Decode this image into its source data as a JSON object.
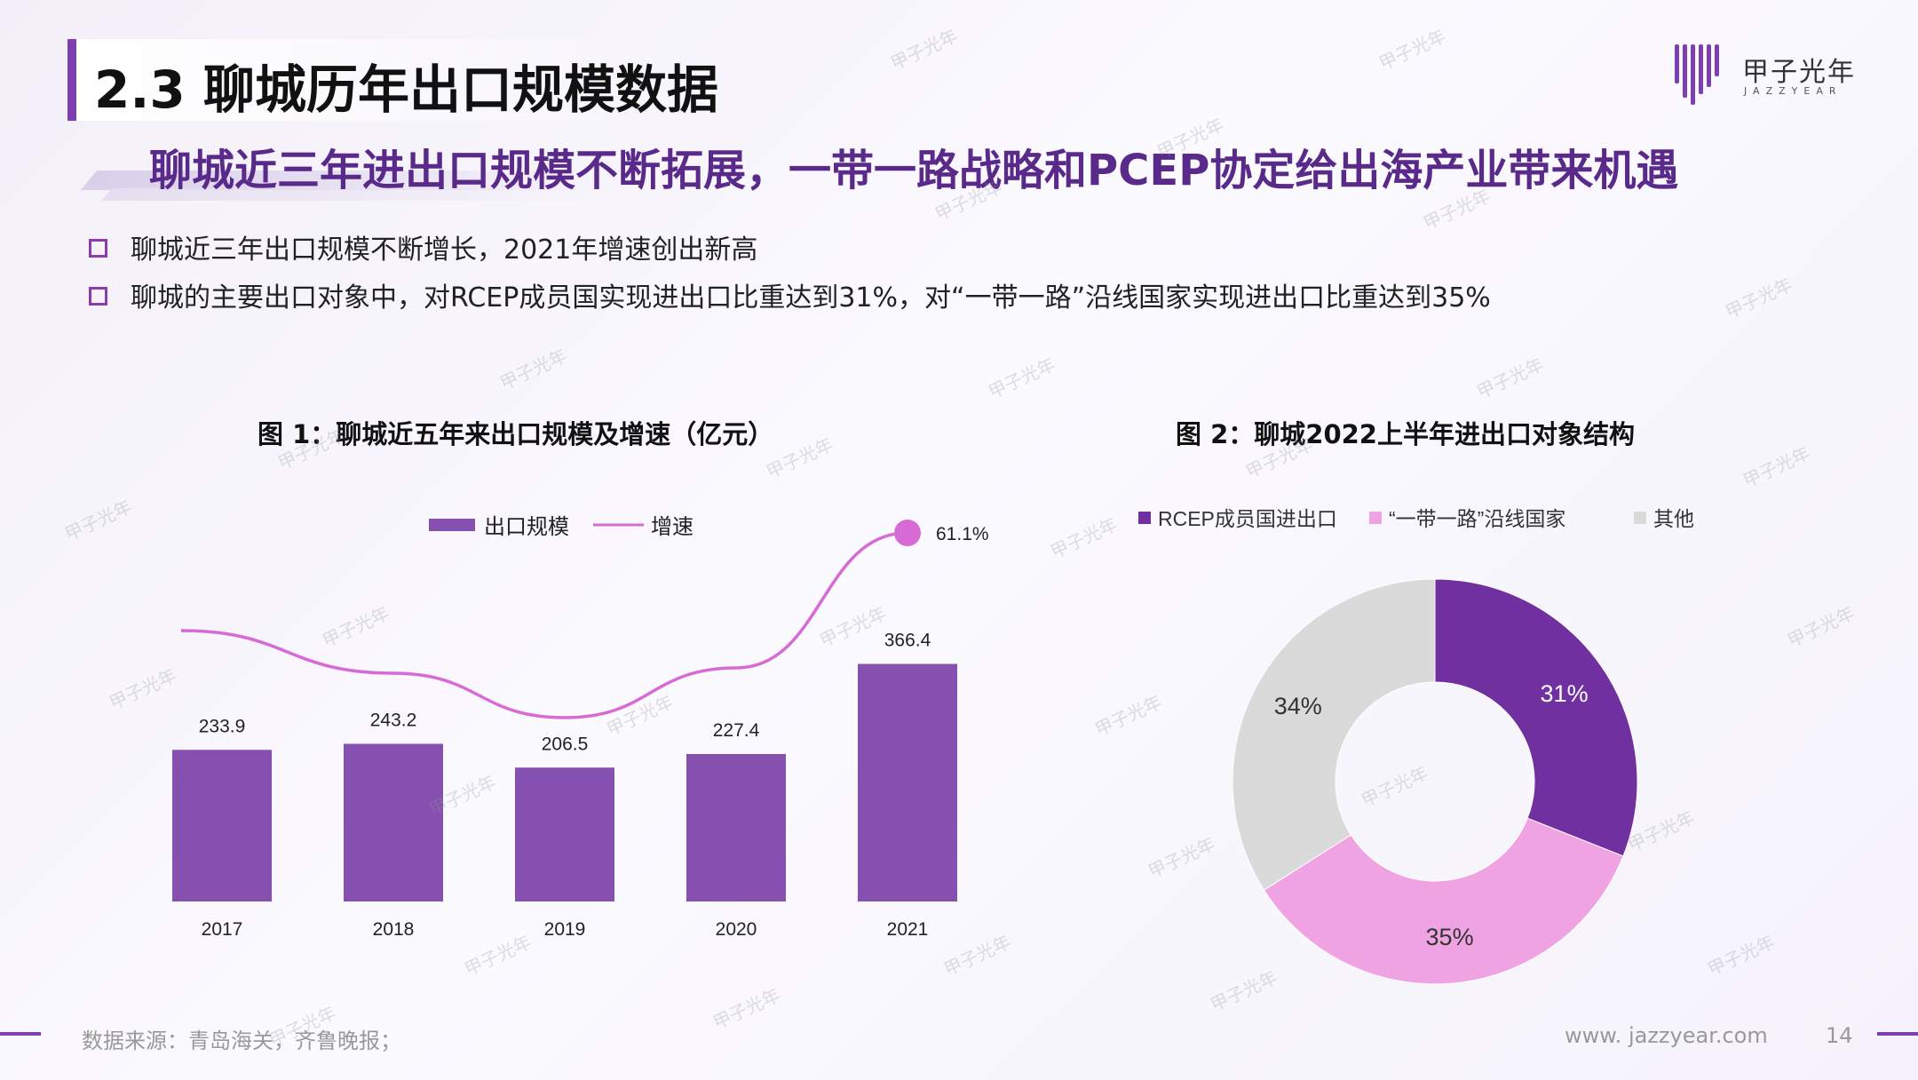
{
  "header": {
    "title": "2.3 聊城历年出口规模数据",
    "subtitle": "聊城近三年进出口规模不断拓展，一带一路战略和PCEP协定给出海产业带来机遇"
  },
  "logo": {
    "cn": "甲子光年",
    "en": "JAZZYEAR"
  },
  "bullets": [
    "聊城近三年出口规模不断增长，2021年增速创出新高",
    "聊城的主要出口对象中，对RCEP成员国实现进出口比重达到31%，对“一带一路”沿线国家实现进出口比重达到35%"
  ],
  "watermark": "甲子光年",
  "footer": {
    "source": "数据来源：青岛海关，齐鲁晚报；",
    "url": "www. jazzyear.com",
    "page": "14"
  },
  "colors": {
    "accent": "#7d3fb0",
    "bar": "#8650b0",
    "line": "#d86ad6",
    "rcep": "#7030a0",
    "belt": "#f0a3e2",
    "other": "#dadada"
  },
  "chart_data": [
    {
      "type": "bar",
      "title": "图 1：聊城近五年来出口规模及增速（亿元）",
      "categories": [
        "2017",
        "2018",
        "2019",
        "2020",
        "2021"
      ],
      "series": [
        {
          "name": "出口规模",
          "type": "bar",
          "values": [
            233.9,
            243.2,
            206.5,
            227.4,
            366.4
          ]
        },
        {
          "name": "增速",
          "type": "line",
          "values": [
            null,
            null,
            null,
            null,
            61.1
          ],
          "labels": [
            "",
            "",
            "",
            "",
            "61.1%"
          ]
        }
      ],
      "legend": "top"
    },
    {
      "type": "pie",
      "variant": "donut",
      "title": "图 2：聊城2022上半年进出口对象结构",
      "labels": [
        "RCEP成员国进出口",
        "“一带一路”沿线国家",
        "其他"
      ],
      "values": [
        31,
        35,
        34
      ],
      "value_labels": [
        "31%",
        "35%",
        "34%"
      ],
      "legend": "top"
    }
  ]
}
